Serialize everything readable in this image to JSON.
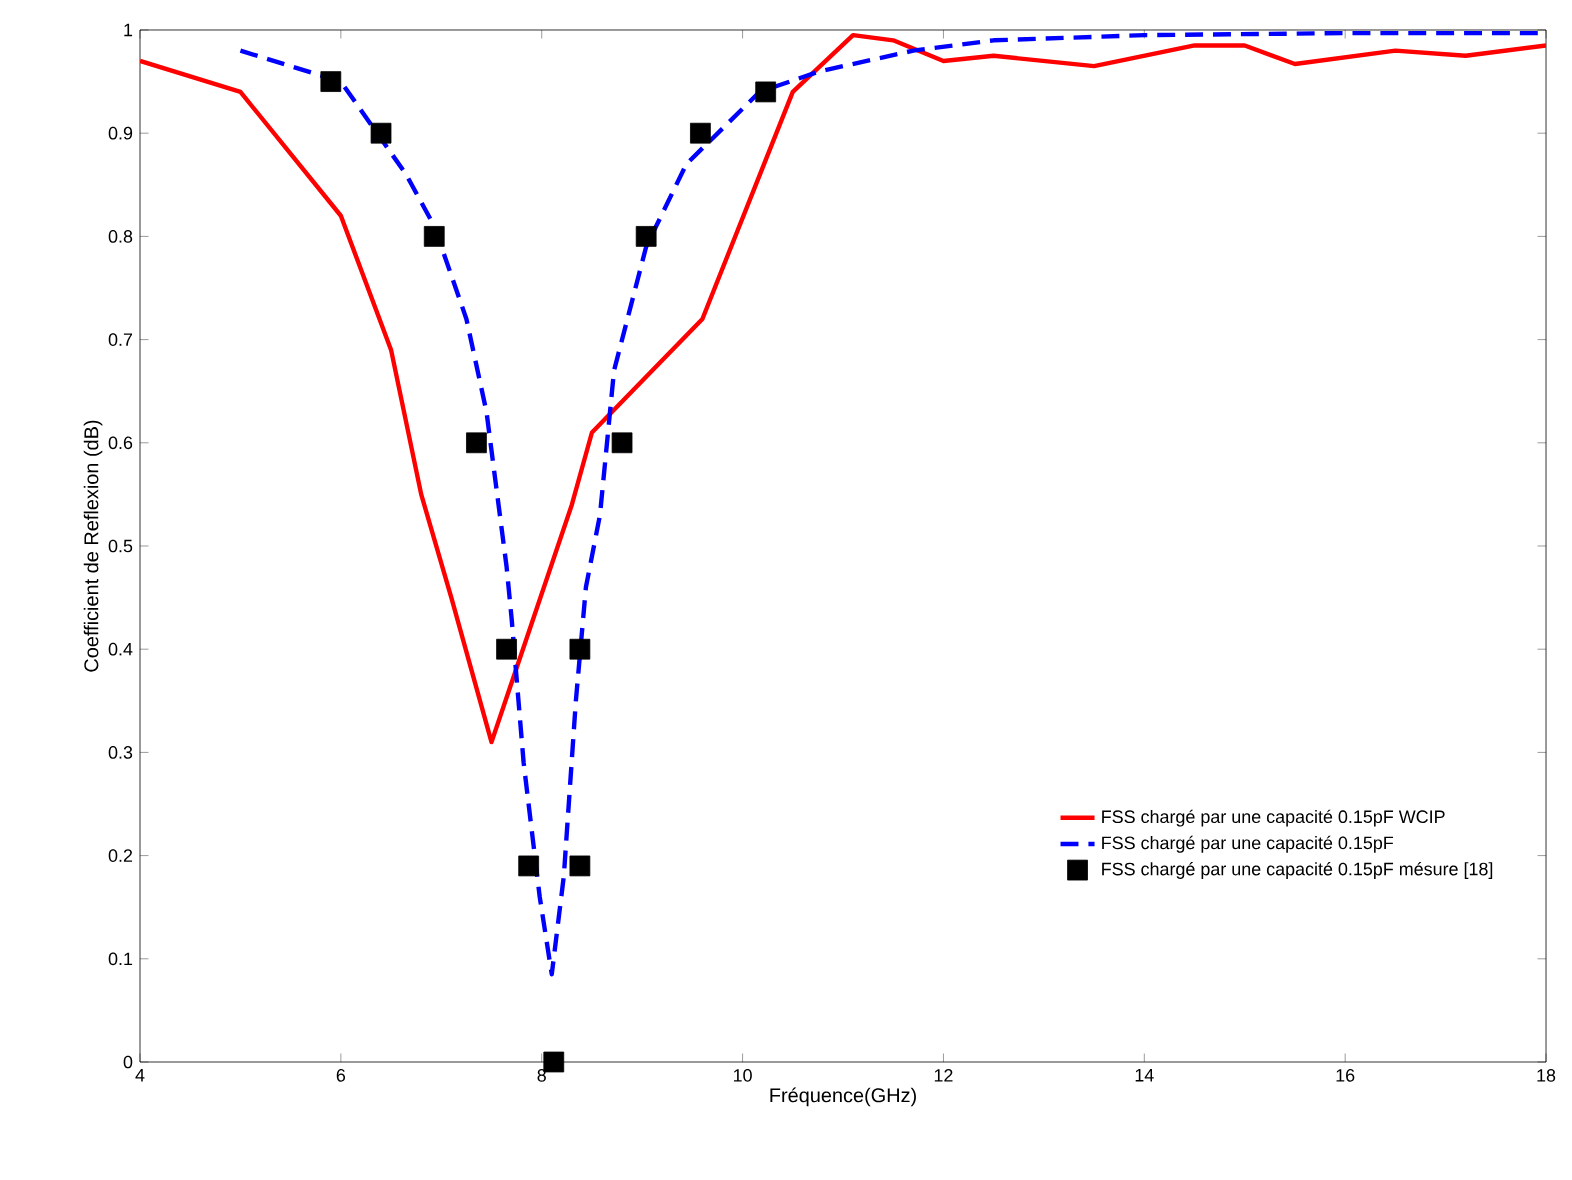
{
  "chart_data": {
    "type": "line",
    "xlabel": "Fréquence(GHz)",
    "ylabel": "Coefficient de Reflexion (dB)",
    "xlim": [
      4,
      18
    ],
    "ylim": [
      0,
      1
    ],
    "xticks": [
      4,
      6,
      8,
      10,
      12,
      14,
      16,
      18
    ],
    "yticks": [
      0,
      0.1,
      0.2,
      0.3,
      0.4,
      0.5,
      0.6,
      0.7,
      0.8,
      0.9,
      1
    ],
    "grid": false,
    "legend": "bottom right",
    "series": [
      {
        "name": "FSS chargé par une capacité 0.15pF WCIP",
        "color": "#ff0000",
        "line_style": "solid",
        "marker": "none",
        "x": [
          4,
          5,
          6,
          6.5,
          6.8,
          7.1,
          7.5,
          8.3,
          8.5,
          9.6,
          10.5,
          11.1,
          11.5,
          12,
          12.5,
          13.5,
          14.5,
          15,
          15.5,
          16.5,
          17.2,
          18
        ],
        "values": [
          0.97,
          0.94,
          0.82,
          0.69,
          0.55,
          0.45,
          0.31,
          0.54,
          0.61,
          0.72,
          0.94,
          0.995,
          0.99,
          0.97,
          0.975,
          0.965,
          0.985,
          0.985,
          0.967,
          0.98,
          0.975,
          0.985
        ]
      },
      {
        "name": "FSS chargé par une capacité 0.15pF",
        "color": "#0000ff",
        "line_style": "dashed",
        "marker": "none",
        "x": [
          5,
          6,
          6.65,
          6.93,
          7.25,
          7.45,
          7.65,
          7.7,
          7.82,
          7.98,
          8.1,
          8.22,
          8.34,
          8.44,
          8.58,
          8.72,
          9.04,
          9.44,
          10.17,
          10.77,
          11.7,
          12.5,
          14,
          16,
          18
        ],
        "values": [
          0.98,
          0.95,
          0.86,
          0.81,
          0.72,
          0.63,
          0.48,
          0.43,
          0.29,
          0.16,
          0.085,
          0.18,
          0.35,
          0.46,
          0.53,
          0.67,
          0.79,
          0.87,
          0.94,
          0.96,
          0.98,
          0.99,
          0.995,
          0.997,
          0.997
        ]
      },
      {
        "name": "FSS chargé par une capacité 0.15pF mésure [18]",
        "type": "scatter",
        "color": "#000000",
        "marker": "square",
        "x": [
          5.9,
          6.4,
          6.93,
          7.35,
          7.65,
          7.87,
          8.12,
          8.38,
          8.38,
          8.8,
          9.04,
          9.58,
          10.23
        ],
        "values": [
          0.95,
          0.9,
          0.8,
          0.6,
          0.4,
          0.19,
          0,
          0.19,
          0.4,
          0.6,
          0.8,
          0.9,
          0.94
        ]
      }
    ]
  }
}
